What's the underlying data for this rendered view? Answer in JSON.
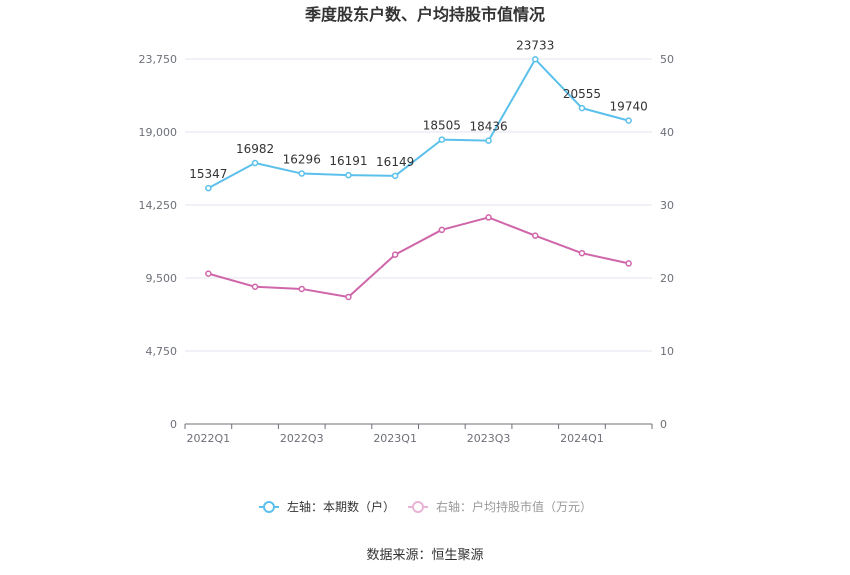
{
  "chart_data": {
    "type": "line",
    "title": "季度股东户数、户均持股市值情况",
    "categories": [
      "2022Q1",
      "2022Q2",
      "2022Q3",
      "2022Q4",
      "2023Q1",
      "2023Q2",
      "2023Q3",
      "2023Q4",
      "2024Q1",
      "2024Q2"
    ],
    "x_tick_labels": [
      "2022Q1",
      "2022Q3",
      "2023Q1",
      "2023Q3",
      "2024Q1"
    ],
    "left_axis": {
      "min": 0,
      "max": 23750,
      "ticks": [
        "0",
        "4,750",
        "9,500",
        "14,250",
        "19,000",
        "23,750"
      ]
    },
    "right_axis": {
      "min": 0,
      "max": 50,
      "ticks": [
        "0",
        "10",
        "20",
        "30",
        "40",
        "50"
      ]
    },
    "series": [
      {
        "name": "左轴：本期数（户）",
        "axis": "left",
        "color": "#5bc0eb",
        "values": [
          15347,
          16982,
          16296,
          16191,
          16149,
          18505,
          18436,
          23733,
          20555,
          19740
        ],
        "labels": [
          "15347",
          "16982",
          "16296",
          "16191",
          "16149",
          "18505",
          "18436",
          "23733",
          "20555",
          "19740"
        ]
      },
      {
        "name": "右轴：户均持股市值（万元）",
        "axis": "right",
        "color": "#d066aa",
        "values": [
          20.6,
          18.8,
          18.5,
          17.4,
          23.2,
          26.6,
          28.3,
          25.8,
          23.4,
          22.0
        ]
      }
    ],
    "grid": true,
    "legend_position": "bottom"
  },
  "source": "数据来源：恒生聚源"
}
